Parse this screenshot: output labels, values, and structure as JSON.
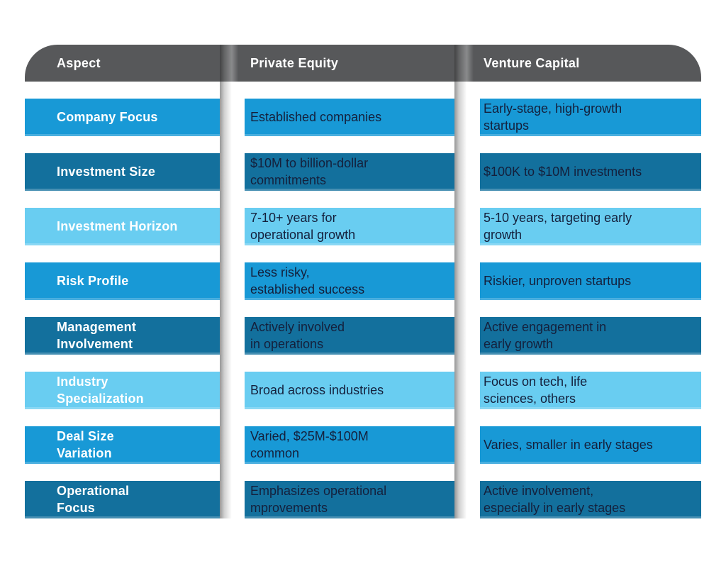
{
  "chart_data": {
    "type": "table",
    "title": "Private Equity vs Venture Capital comparison table",
    "columns": [
      "Aspect",
      "Private Equity",
      "Venture Capital"
    ],
    "rows": [
      {
        "aspect": "Company Focus",
        "private_equity": "Established companies",
        "venture_capital": "Early-stage, high-growth\nstartups",
        "tone": "medium"
      },
      {
        "aspect": "Investment Size",
        "private_equity": "$10M to billion-dollar\ncommitments",
        "venture_capital": "$100K to $10M investments",
        "tone": "dark"
      },
      {
        "aspect": "Investment Horizon",
        "private_equity": "7-10+ years for\noperational growth",
        "venture_capital": "5-10 years, targeting early\ngrowth",
        "tone": "light"
      },
      {
        "aspect": "Risk Profile",
        "private_equity": "Less risky,\nestablished success",
        "venture_capital": "Riskier, unproven startups",
        "tone": "medium"
      },
      {
        "aspect": "Management\nInvolvement",
        "private_equity": "Actively involved\nin operations",
        "venture_capital": "Active engagement in\nearly growth",
        "tone": "dark"
      },
      {
        "aspect": "Industry\nSpecialization",
        "private_equity": "Broad across industries",
        "venture_capital": "Focus on tech, life\nsciences, others",
        "tone": "light"
      },
      {
        "aspect": "Deal Size\nVariation",
        "private_equity": "Varied, $25M-$100M\ncommon",
        "venture_capital": "Varies, smaller in early stages",
        "tone": "medium"
      },
      {
        "aspect": "Operational\nFocus",
        "private_equity": "Emphasizes operational\nmprovements",
        "venture_capital": "Active involvement,\nespecially in early stages",
        "tone": "dark"
      }
    ],
    "layout": {
      "legend": "none",
      "grid": "off"
    }
  },
  "colors": {
    "header_bg": "#57585A",
    "row_medium_blue": "#1899D6",
    "row_dark_teal": "#13709D",
    "row_light_blue": "#69CDF1",
    "header_text": "#FFFFFF",
    "aspect_text": "#FFFFFF",
    "cell_text": "#14203C",
    "page_bg": "#FFFFFF"
  }
}
